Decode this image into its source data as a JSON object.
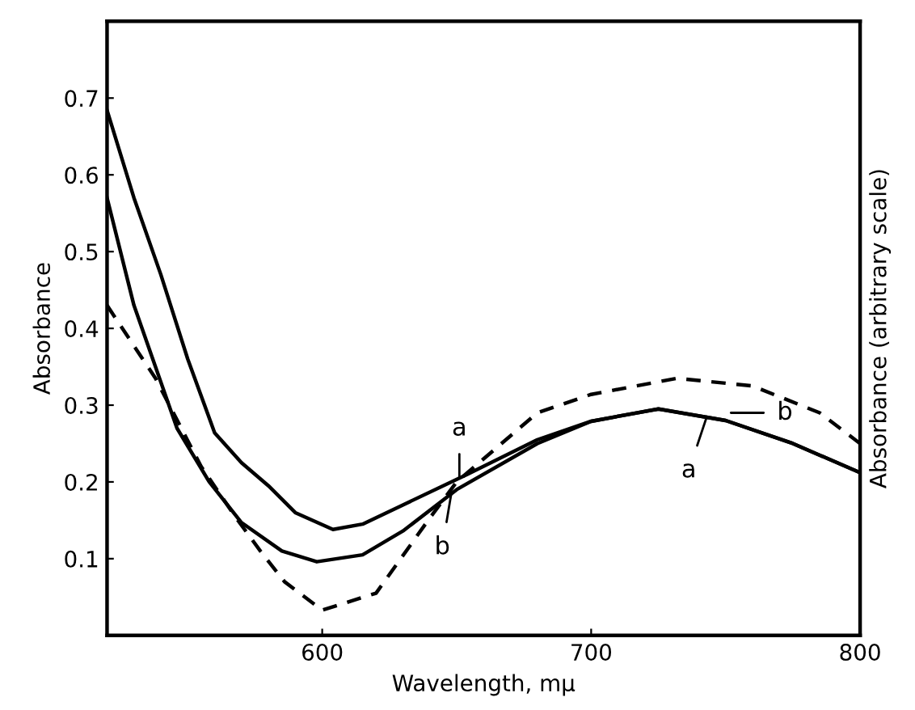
{
  "chart_data": {
    "type": "line",
    "xlabel": "Wavelength, mμ",
    "ylabel": "Absorbance",
    "y2label": "Absorbance (arbitrary scale)",
    "xlim": [
      520,
      800
    ],
    "ylim": [
      0,
      0.8
    ],
    "xticks": [
      600,
      700,
      800
    ],
    "yticks": [
      0.1,
      0.2,
      0.3,
      0.4,
      0.5,
      0.6,
      0.7
    ],
    "grid": false,
    "legend": false,
    "marker": "none",
    "series": [
      {
        "color": "#000000",
        "line_style": "solid",
        "x": [
          520,
          530,
          540,
          550,
          560,
          570,
          580,
          590,
          604,
          615,
          630,
          654,
          680,
          700,
          725,
          750,
          775,
          800
        ],
        "values": [
          0.684,
          0.57,
          0.47,
          0.36,
          0.264,
          0.225,
          0.195,
          0.16,
          0.138,
          0.145,
          0.17,
          0.21,
          0.255,
          0.279,
          0.295,
          0.28,
          0.25,
          0.212
        ]
      },
      {
        "color": "#000000",
        "line_style": "solid",
        "x": [
          520,
          530,
          546,
          558,
          570,
          585,
          598,
          615,
          630,
          650,
          680,
          700,
          725,
          750,
          775,
          800
        ],
        "values": [
          0.57,
          0.43,
          0.27,
          0.2,
          0.147,
          0.11,
          0.096,
          0.105,
          0.136,
          0.19,
          0.25,
          0.279,
          0.295,
          0.28,
          0.25,
          0.212
        ]
      },
      {
        "color": "#000000",
        "line_style": "dashed",
        "x": [
          520,
          538,
          555,
          568,
          577,
          586,
          600,
          620,
          640,
          650,
          680,
          700,
          732,
          760,
          785,
          800
        ],
        "values": [
          0.43,
          0.335,
          0.22,
          0.153,
          0.11,
          0.07,
          0.033,
          0.055,
          0.153,
          0.2,
          0.29,
          0.314,
          0.335,
          0.325,
          0.29,
          0.25
        ]
      }
    ],
    "annotations": [
      {
        "text": "a",
        "x": 651,
        "y": 0.205
      },
      {
        "text": "b",
        "x": 648,
        "y": 0.185
      },
      {
        "text": "a",
        "x": 743,
        "y": 0.285
      },
      {
        "text": "b",
        "x": 752,
        "y": 0.29
      }
    ]
  }
}
